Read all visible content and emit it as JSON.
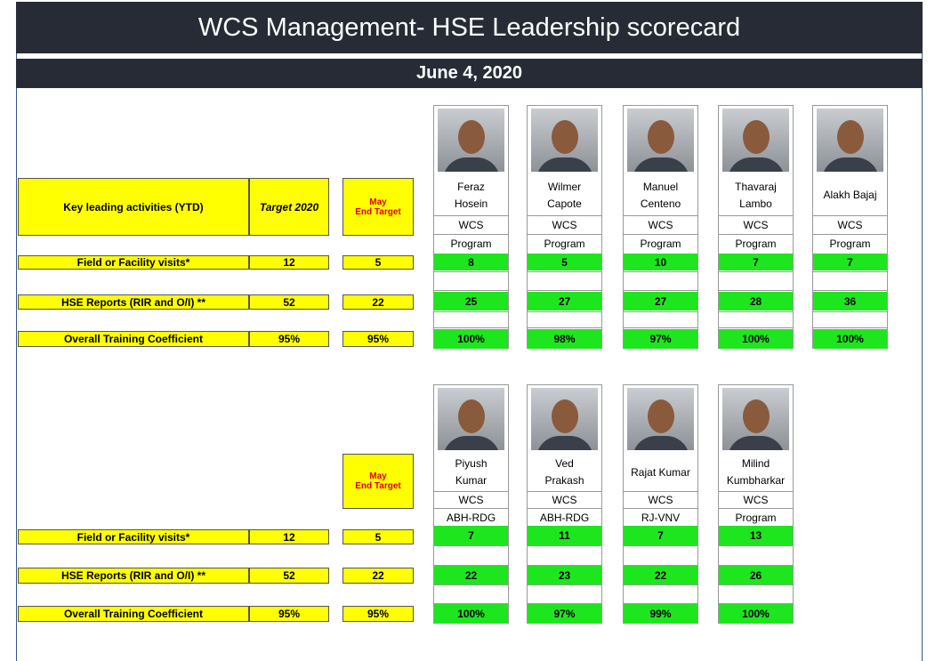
{
  "header": {
    "title": "WCS Management- HSE Leadership scorecard",
    "date": "June 4, 2020"
  },
  "sections": [
    {
      "headers": {
        "activity": "Key leading activities (YTD)",
        "target": "Target 2020",
        "period_target": [
          "May",
          "End Target"
        ]
      },
      "rows": [
        {
          "label": "Field or Facility visits*",
          "target": 12,
          "period_target": 5
        },
        {
          "label": "HSE Reports (RIR and O/I) **",
          "target": 52,
          "period_target": 22
        },
        {
          "label": "Overall Training Coefficient",
          "target": "95%",
          "period_target": "95%"
        }
      ],
      "people": [
        {
          "name": "Feraz Hosein",
          "org": "WCS",
          "group": "Program",
          "values": [
            8,
            25,
            "100%"
          ]
        },
        {
          "name": "Wilmer Capote",
          "org": "WCS",
          "group": "Program",
          "values": [
            5,
            27,
            "98%"
          ]
        },
        {
          "name": "Manuel Centeno",
          "org": "WCS",
          "group": "Program",
          "values": [
            10,
            27,
            "97%"
          ]
        },
        {
          "name": "Thavaraj Lambo",
          "org": "WCS",
          "group": "Program",
          "values": [
            7,
            28,
            "100%"
          ]
        },
        {
          "name": "Alakh Bajaj",
          "org": "WCS",
          "group": "Program",
          "values": [
            7,
            36,
            "100%"
          ]
        }
      ]
    },
    {
      "headers": {
        "period_target": [
          "May",
          "End Target"
        ]
      },
      "rows": [
        {
          "label": "Field or Facility visits*",
          "target": 12,
          "period_target": 5
        },
        {
          "label": "HSE Reports (RIR and O/I) **",
          "target": 52,
          "period_target": 22
        },
        {
          "label": "Overall Training Coefficient",
          "target": "95%",
          "period_target": "95%"
        }
      ],
      "people": [
        {
          "name": "Piyush Kumar",
          "org": "WCS",
          "group": "ABH-RDG",
          "values": [
            7,
            22,
            "100%"
          ]
        },
        {
          "name": "Ved Prakash",
          "org": "WCS",
          "group": "ABH-RDG",
          "values": [
            11,
            23,
            "97%"
          ]
        },
        {
          "name": "Rajat Kumar",
          "org": "WCS",
          "group": "RJ-VNV",
          "values": [
            7,
            22,
            "99%"
          ]
        },
        {
          "name": "Milind Kumbharkar",
          "org": "WCS",
          "group": "Program",
          "values": [
            13,
            26,
            "100%"
          ]
        }
      ]
    }
  ]
}
